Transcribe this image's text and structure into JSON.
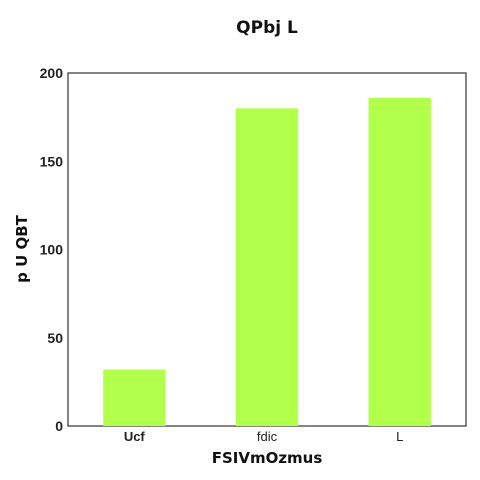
{
  "chart_data": {
    "type": "bar",
    "title": "QPbj L",
    "xlabel": "FSIVmOzmus",
    "ylabel": "p U QBT",
    "categories": [
      "Ucf",
      "fdic",
      "L"
    ],
    "values": [
      32,
      180,
      186
    ],
    "ylim": [
      0,
      200
    ],
    "yticks": [
      "0",
      "50",
      "100",
      "150",
      "200"
    ],
    "bar_color": "#b2ff4c",
    "grid": false,
    "legend": "none"
  }
}
